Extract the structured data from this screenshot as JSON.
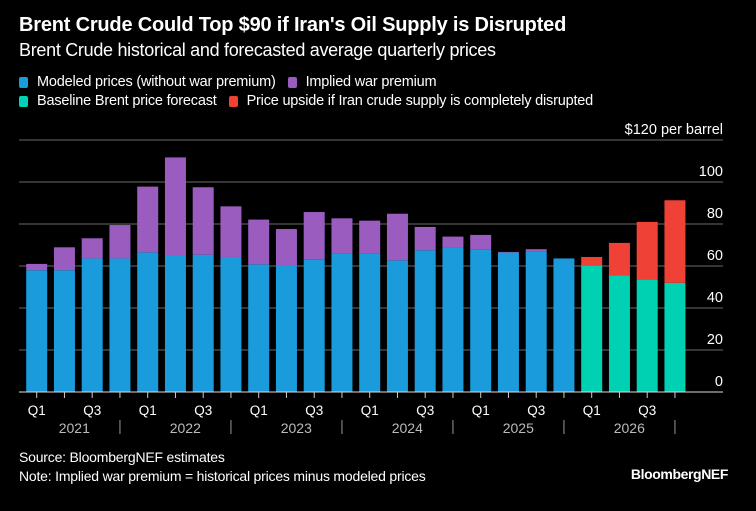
{
  "title": "Brent Crude Could Top $90 if Iran's Oil Supply is Disrupted",
  "subtitle": "Brent Crude historical and forecasted average quarterly prices",
  "legend": [
    {
      "label": "Modeled prices (without war premium)",
      "color": "#1a9bdb"
    },
    {
      "label": "Implied war premium",
      "color": "#9b5cc0"
    },
    {
      "label": "Baseline Brent price forecast",
      "color": "#00d1b2"
    },
    {
      "label": "Price upside if Iran crude supply is completely disrupted",
      "color": "#ef4136"
    }
  ],
  "source": "Source: BloombergNEF estimates",
  "note": "Note: Implied war premium = historical prices minus modeled prices",
  "logo": "BloombergNEF",
  "chart_data": {
    "type": "bar",
    "stacked": true,
    "unit_label": "$120 per barrel",
    "ylim": [
      0,
      120
    ],
    "yticks": [
      0,
      20,
      40,
      60,
      80,
      100,
      120
    ],
    "ytick_labels": [
      "0",
      "20",
      "40",
      "60",
      "80",
      "100",
      "$120 per barrel"
    ],
    "y_axis_position": "right",
    "grid": true,
    "categories": [
      "2021 Q1",
      "2021 Q2",
      "2021 Q3",
      "2021 Q4",
      "2022 Q1",
      "2022 Q2",
      "2022 Q3",
      "2022 Q4",
      "2023 Q1",
      "2023 Q2",
      "2023 Q3",
      "2023 Q4",
      "2024 Q1",
      "2024 Q2",
      "2024 Q3",
      "2024 Q4",
      "2025 Q1",
      "2025 Q2",
      "2025 Q3",
      "2025 Q4",
      "2026 Q1",
      "2026 Q2",
      "2026 Q3",
      "2026 Q4"
    ],
    "quarter_labels": [
      "Q1",
      "",
      "Q3",
      "",
      "Q1",
      "",
      "Q3",
      "",
      "Q1",
      "",
      "Q3",
      "",
      "Q1",
      "",
      "Q3",
      "",
      "Q1",
      "",
      "Q3",
      "",
      "Q1",
      "",
      "Q3",
      ""
    ],
    "years": [
      "2021",
      "2022",
      "2023",
      "2024",
      "2025",
      "2026"
    ],
    "series": [
      {
        "name": "Modeled prices (without war premium)",
        "color": "#1a9bdb",
        "values": [
          58,
          58,
          63.6,
          63.6,
          66.5,
          65,
          65.4,
          64.3,
          60.8,
          60,
          63.2,
          66,
          66,
          62.7,
          67.5,
          68.6,
          68,
          66.4,
          67.1,
          63.6,
          null,
          null,
          null,
          null
        ]
      },
      {
        "name": "Implied war premium",
        "color": "#9b5cc0",
        "values": [
          3,
          10.9,
          9.6,
          15.9,
          31.3,
          46.7,
          32.1,
          24.1,
          21.3,
          17.6,
          22.5,
          16.7,
          15.6,
          22.2,
          11.1,
          5.4,
          6.8,
          0.3,
          0.9,
          0,
          null,
          null,
          null,
          null
        ]
      },
      {
        "name": "Baseline Brent price forecast",
        "color": "#00d1b2",
        "values": [
          null,
          null,
          null,
          null,
          null,
          null,
          null,
          null,
          null,
          null,
          null,
          null,
          null,
          null,
          null,
          null,
          null,
          null,
          null,
          null,
          60.3,
          55.5,
          53.7,
          52
        ]
      },
      {
        "name": "Price upside if Iran crude supply is completely disrupted",
        "color": "#ef4136",
        "values": [
          null,
          null,
          null,
          null,
          null,
          null,
          null,
          null,
          null,
          null,
          null,
          null,
          null,
          null,
          null,
          null,
          null,
          null,
          null,
          null,
          4,
          15.5,
          27.3,
          39.3
        ]
      }
    ]
  }
}
